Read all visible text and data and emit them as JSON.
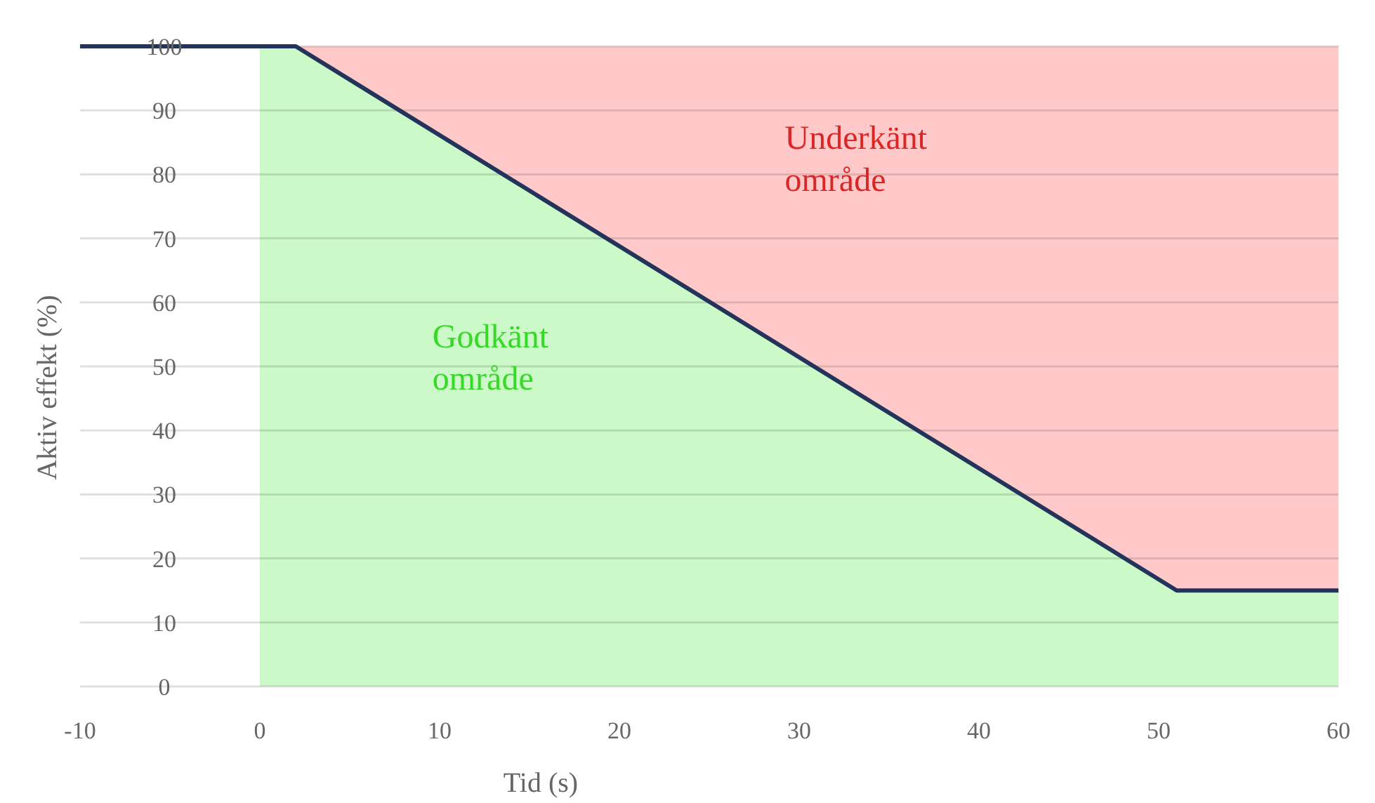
{
  "chart_data": {
    "type": "area",
    "xlabel": "Tid (s)",
    "ylabel": "Aktiv effekt (%)",
    "xlim": [
      -10,
      60
    ],
    "xticks": [
      -10,
      0,
      10,
      20,
      30,
      40,
      50,
      60
    ],
    "ylim": [
      0,
      100
    ],
    "yticks": [
      0,
      10,
      20,
      30,
      40,
      50,
      60,
      70,
      80,
      90,
      100
    ],
    "grid": "y",
    "series": [
      {
        "color": "#ffc9c9",
        "x": [
          2,
          51,
          60
        ],
        "values": [
          100,
          100,
          100
        ]
      },
      {
        "color": "#ccf9c8",
        "x": [
          0,
          2,
          51,
          60
        ],
        "values": [
          100,
          100,
          15,
          15
        ]
      },
      {
        "type": "line",
        "color": "#24335a",
        "x": [
          -10,
          2,
          51,
          60
        ],
        "values": [
          100,
          100,
          15,
          15
        ]
      }
    ],
    "annotations": [
      "Underkänt område",
      "Godkänt område"
    ]
  }
}
